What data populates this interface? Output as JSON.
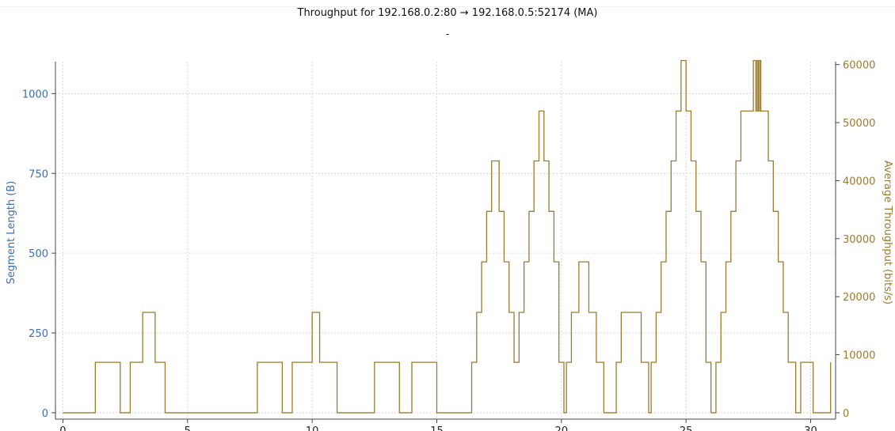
{
  "title": "Throughput for 192.168.0.2:80 → 192.168.0.5:52174 (MA)",
  "subtitle": "-",
  "chart_data": {
    "type": "line",
    "title": "Throughput for 192.168.0.2:80 → 192.168.0.5:52174 (MA)",
    "xlabel": "",
    "ylabel_left": "Segment Length (B)",
    "ylabel_right": "Average Throughput (bits/s)",
    "xlim": [
      -0.3,
      31.0
    ],
    "ylim_left": [
      -20,
      1100
    ],
    "ylim_right": [
      -1100,
      60500
    ],
    "x_ticks": [
      0,
      5,
      10,
      15,
      20,
      25,
      30
    ],
    "y_left_ticks": [
      0,
      250,
      500,
      750,
      1000
    ],
    "y_right_ticks": [
      0,
      10000,
      20000,
      30000,
      40000,
      50000,
      60000
    ],
    "grid": true,
    "colors": {
      "left_axis": "#3c6eb4",
      "right_axis": "#9c7a2e",
      "series": "#9c7a2e",
      "grid": "#d9d9d9",
      "axis": "#444444"
    },
    "series": [
      {
        "axis": "right",
        "step": true,
        "points": [
          [
            0,
            0
          ],
          [
            1.3,
            8700
          ],
          [
            2.3,
            0
          ],
          [
            2.7,
            8700
          ],
          [
            3.2,
            17300
          ],
          [
            3.7,
            8700
          ],
          [
            4.1,
            0
          ],
          [
            7.8,
            8700
          ],
          [
            8.8,
            0
          ],
          [
            9.2,
            8700
          ],
          [
            10.0,
            17300
          ],
          [
            10.3,
            8700
          ],
          [
            11.0,
            0
          ],
          [
            12.5,
            8700
          ],
          [
            13.5,
            0
          ],
          [
            14.0,
            8700
          ],
          [
            15.0,
            0
          ],
          [
            16.4,
            8700
          ],
          [
            16.6,
            17300
          ],
          [
            16.8,
            26000
          ],
          [
            17.0,
            34700
          ],
          [
            17.2,
            43400
          ],
          [
            17.5,
            34700
          ],
          [
            17.7,
            26000
          ],
          [
            17.9,
            17300
          ],
          [
            18.1,
            8700
          ],
          [
            18.3,
            17300
          ],
          [
            18.5,
            26000
          ],
          [
            18.7,
            34700
          ],
          [
            18.9,
            43400
          ],
          [
            19.1,
            52000
          ],
          [
            19.3,
            43400
          ],
          [
            19.5,
            34700
          ],
          [
            19.7,
            26000
          ],
          [
            19.9,
            8700
          ],
          [
            20.1,
            0
          ],
          [
            20.2,
            8700
          ],
          [
            20.4,
            17300
          ],
          [
            20.7,
            26000
          ],
          [
            21.1,
            17300
          ],
          [
            21.4,
            8700
          ],
          [
            21.7,
            0
          ],
          [
            22.2,
            8700
          ],
          [
            22.4,
            17300
          ],
          [
            23.2,
            8700
          ],
          [
            23.5,
            0
          ],
          [
            23.6,
            8700
          ],
          [
            23.8,
            17300
          ],
          [
            24.0,
            26000
          ],
          [
            24.2,
            34700
          ],
          [
            24.4,
            43400
          ],
          [
            24.6,
            52000
          ],
          [
            24.8,
            60700
          ],
          [
            25.0,
            52000
          ],
          [
            25.2,
            43400
          ],
          [
            25.4,
            34700
          ],
          [
            25.6,
            26000
          ],
          [
            25.8,
            8700
          ],
          [
            26.0,
            0
          ],
          [
            26.2,
            8700
          ],
          [
            26.4,
            17300
          ],
          [
            26.6,
            26000
          ],
          [
            26.8,
            34700
          ],
          [
            27.0,
            43400
          ],
          [
            27.2,
            52000
          ],
          [
            27.7,
            60700
          ],
          [
            27.8,
            52000
          ],
          [
            27.85,
            60700
          ],
          [
            27.9,
            52000
          ],
          [
            27.95,
            60700
          ],
          [
            28.0,
            52000
          ],
          [
            28.3,
            43400
          ],
          [
            28.5,
            34700
          ],
          [
            28.7,
            26000
          ],
          [
            28.9,
            17300
          ],
          [
            29.1,
            8700
          ],
          [
            29.4,
            0
          ],
          [
            29.6,
            8700
          ],
          [
            30.1,
            0
          ],
          [
            30.8,
            8700
          ]
        ]
      }
    ]
  }
}
